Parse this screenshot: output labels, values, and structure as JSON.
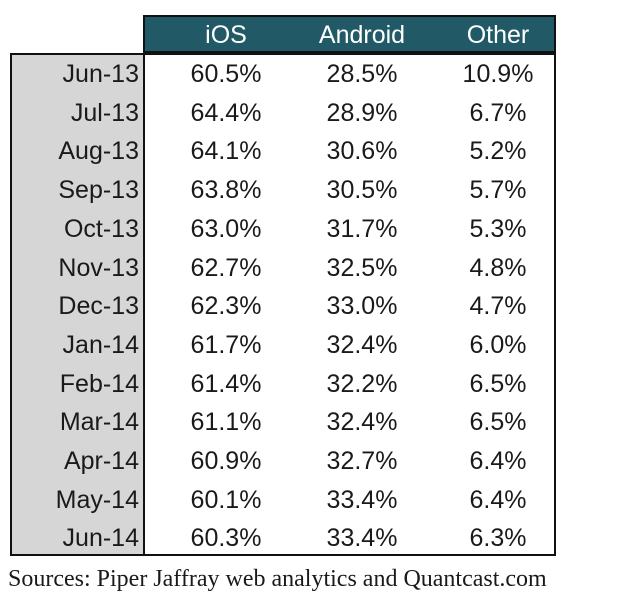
{
  "chart_data": {
    "type": "table",
    "columns": [
      "iOS",
      "Android",
      "Other"
    ],
    "rows": [
      {
        "label": "Jun-13",
        "values": [
          "60.5%",
          "28.5%",
          "10.9%"
        ]
      },
      {
        "label": "Jul-13",
        "values": [
          "64.4%",
          "28.9%",
          "6.7%"
        ]
      },
      {
        "label": "Aug-13",
        "values": [
          "64.1%",
          "30.6%",
          "5.2%"
        ]
      },
      {
        "label": "Sep-13",
        "values": [
          "63.8%",
          "30.5%",
          "5.7%"
        ]
      },
      {
        "label": "Oct-13",
        "values": [
          "63.0%",
          "31.7%",
          "5.3%"
        ]
      },
      {
        "label": "Nov-13",
        "values": [
          "62.7%",
          "32.5%",
          "4.8%"
        ]
      },
      {
        "label": "Dec-13",
        "values": [
          "62.3%",
          "33.0%",
          "4.7%"
        ]
      },
      {
        "label": "Jan-14",
        "values": [
          "61.7%",
          "32.4%",
          "6.0%"
        ]
      },
      {
        "label": "Feb-14",
        "values": [
          "61.4%",
          "32.2%",
          "6.5%"
        ]
      },
      {
        "label": "Mar-14",
        "values": [
          "61.1%",
          "32.4%",
          "6.5%"
        ]
      },
      {
        "label": "Apr-14",
        "values": [
          "60.9%",
          "32.7%",
          "6.4%"
        ]
      },
      {
        "label": "May-14",
        "values": [
          "60.1%",
          "33.4%",
          "6.4%"
        ]
      },
      {
        "label": "Jun-14",
        "values": [
          "60.3%",
          "33.4%",
          "6.3%"
        ]
      }
    ],
    "source": "Sources: Piper Jaffray web analytics and Quantcast.com"
  },
  "colors": {
    "header_bg": "#215a66",
    "header_text": "#ffffff",
    "row_label_bg": "#d6d6d6",
    "border": "#111111"
  }
}
